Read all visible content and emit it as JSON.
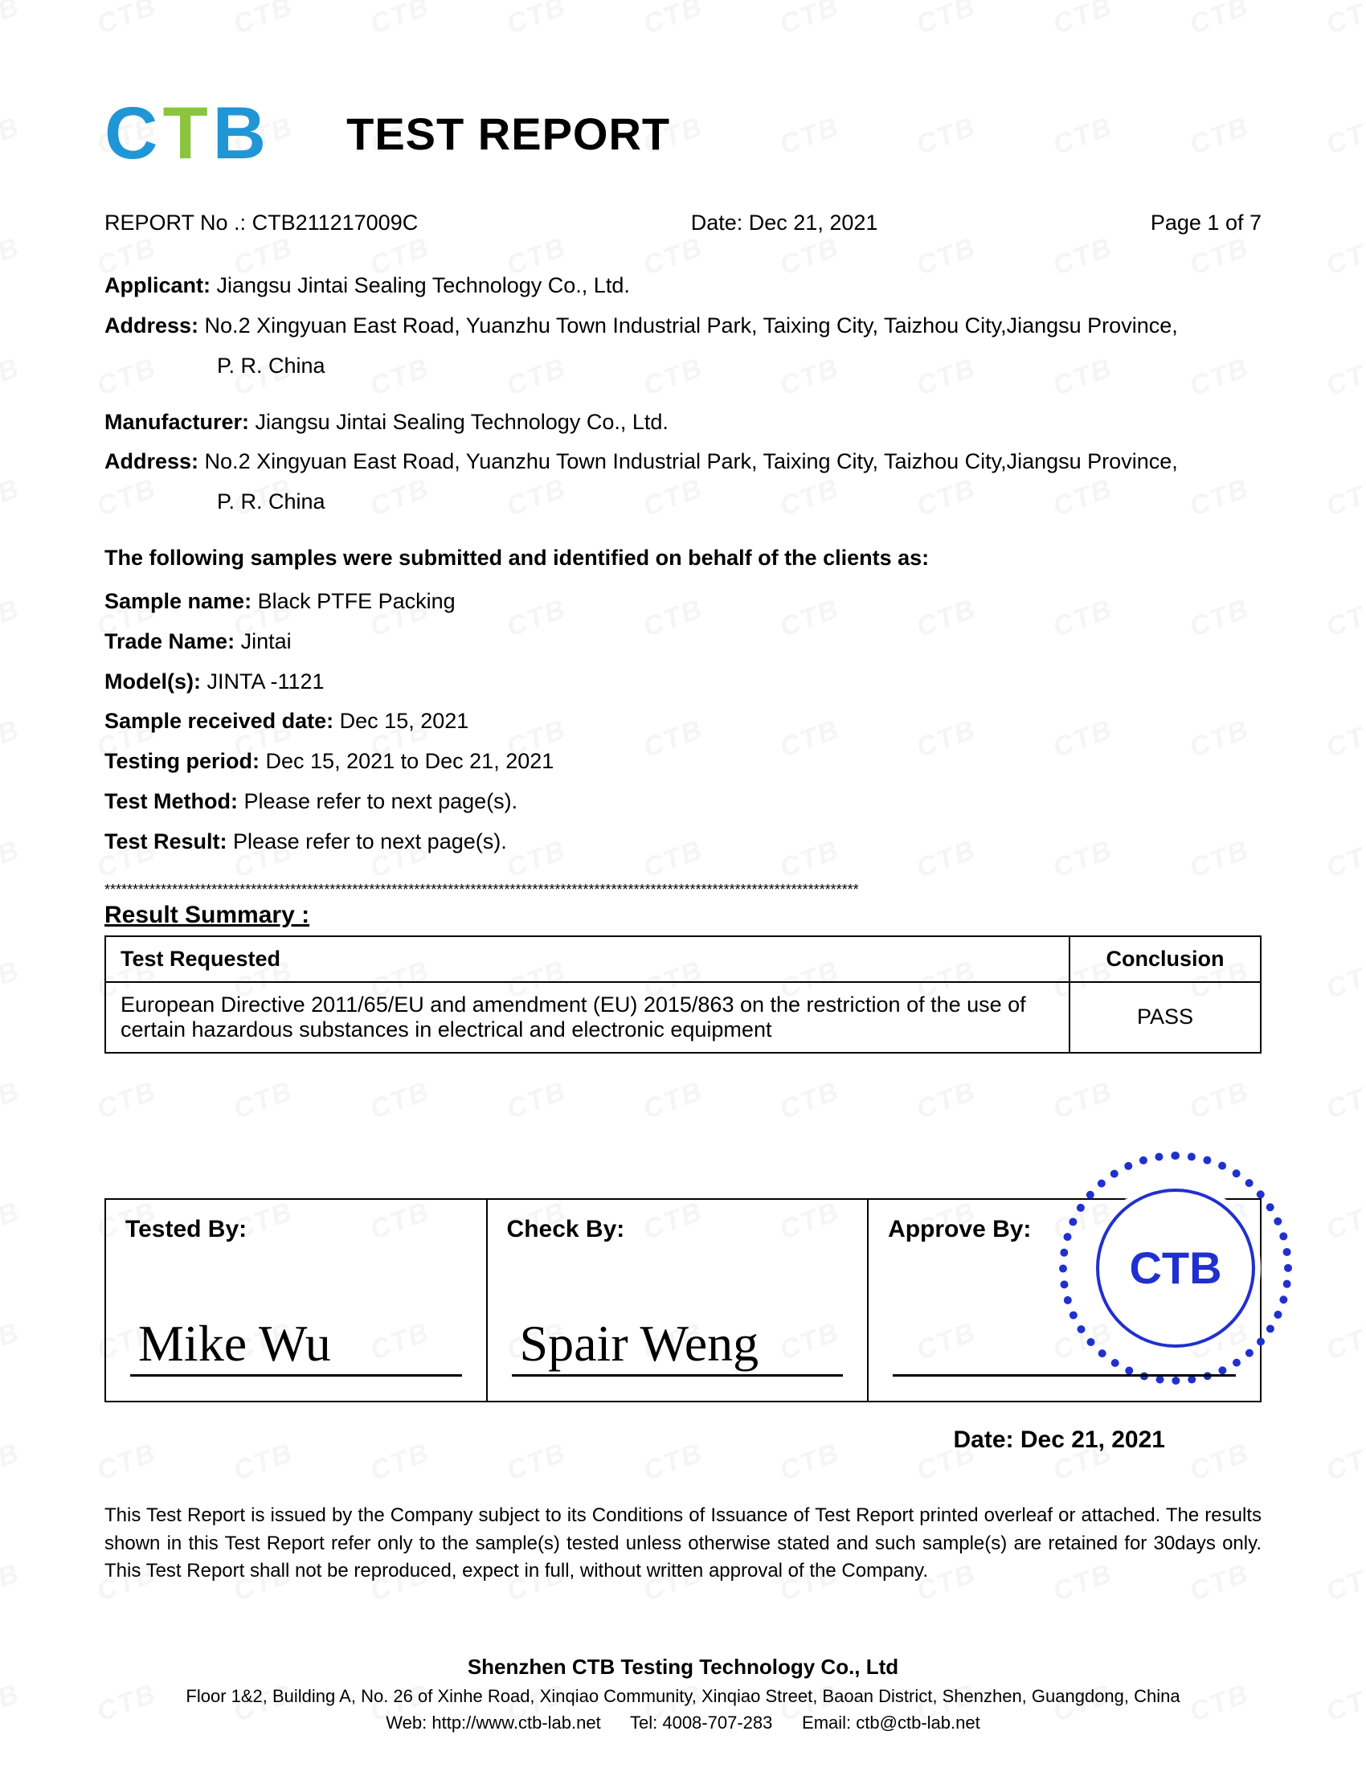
{
  "logo": {
    "c": "C",
    "t": "T",
    "b": "B"
  },
  "title": "TEST REPORT",
  "report_no_label": "REPORT No .:",
  "report_no": "CTB211217009C",
  "date_label": "Date:",
  "date": "Dec 21, 2021",
  "page_label": "Page 1 of 7",
  "applicant_label": "Applicant:",
  "applicant": "Jiangsu Jintai Sealing Technology Co., Ltd.",
  "applicant_addr_label": "Address:",
  "applicant_addr_1": "No.2 Xingyuan East Road, Yuanzhu Town Industrial Park, Taixing City, Taizhou City,Jiangsu Province,",
  "applicant_addr_2": "P. R. China",
  "manufacturer_label": "Manufacturer:",
  "manufacturer": "Jiangsu Jintai Sealing Technology Co., Ltd.",
  "manufacturer_addr_label": "Address:",
  "manufacturer_addr_1": "No.2 Xingyuan East Road, Yuanzhu Town Industrial Park, Taixing City, Taizhou City,Jiangsu Province,",
  "manufacturer_addr_2": "P. R. China",
  "samples_intro": "The following samples were submitted and identified on behalf of the clients as:",
  "fields": {
    "sample_name_label": "Sample name:",
    "sample_name": "Black PTFE Packing",
    "trade_name_label": "Trade Name:",
    "trade_name": "Jintai",
    "models_label": "Model(s):",
    "models": "JINTA -1121",
    "received_label": "Sample received date:",
    "received": "Dec 15, 2021",
    "period_label": "Testing period:",
    "period": "Dec 15, 2021 to Dec 21, 2021",
    "method_label": "Test Method:",
    "method": "Please refer to next page(s).",
    "result_label": "Test Result:",
    "result": "Please refer to next page(s)."
  },
  "stars": "**************************************************************************************************************************************",
  "summary_title": "Result Summary :",
  "summary": {
    "columns": [
      "Test Requested",
      "Conclusion"
    ],
    "row": {
      "test": "European Directive 2011/65/EU and amendment (EU) 2015/863 on the restriction of the use of certain hazardous substances in electrical and electronic equipment",
      "conclusion": "PASS"
    }
  },
  "sig": {
    "tested_label": "Tested By:",
    "tested_sig": "Mike Wu",
    "check_label": "Check By:",
    "check_sig": "Spair Weng",
    "approve_label": "Approve By:",
    "approve_sig": "",
    "stamp_text": "CTB",
    "date_label": "Date:",
    "date": "Dec 21, 2021"
  },
  "disclaimer": "This Test Report is issued by the Company subject to its Conditions of Issuance of Test Report printed overleaf or attached. The results shown in this Test Report refer only to the sample(s) tested unless otherwise stated and such sample(s) are retained for 30days only. This Test Report shall not be reproduced, expect in full, without written approval of the Company.",
  "footer": {
    "company": "Shenzhen CTB Testing Technology Co., Ltd",
    "addr": "Floor 1&2, Building A, No. 26 of Xinhe Road, Xinqiao Community, Xinqiao Street, Baoan District, Shenzhen, Guangdong, China",
    "web_label": "Web:",
    "web": "http://www.ctb-lab.net",
    "tel_label": "Tel:",
    "tel": "4008-707-283",
    "email_label": "Email:",
    "email": "ctb@ctb-lab.net"
  },
  "colors": {
    "logo_blue": "#2196d6",
    "logo_green": "#8bc53f",
    "stamp_blue": "#2030d0",
    "text": "#000000",
    "bg": "#ffffff"
  }
}
